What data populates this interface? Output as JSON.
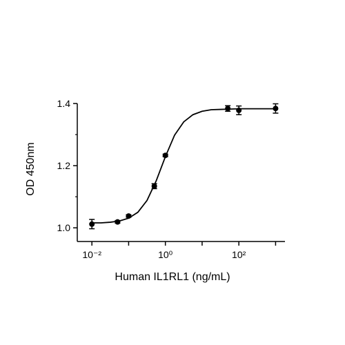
{
  "chart_data": {
    "type": "scatter",
    "x_label": "Human IL1RL1 (ng/mL)",
    "y_label": "OD 450nm",
    "xscale": "log",
    "xlim": [
      0.004,
      1800
    ],
    "ylim": [
      0.956,
      1.4
    ],
    "xticks": [
      {
        "value": 0.01,
        "label": "10⁻²"
      },
      {
        "value": 1,
        "label": "10⁰"
      },
      {
        "value": 100,
        "label": "10²"
      }
    ],
    "xminor_ticks": [
      0.1,
      10,
      1000
    ],
    "yticks": [
      {
        "value": 1,
        "label": "1.0"
      },
      1.2,
      1.4
    ],
    "yminor_ticks": [
      1.1,
      1.3
    ],
    "grid": false,
    "series": [
      {
        "color": "#000000",
        "x": [
          0.01,
          0.05,
          0.1,
          0.5,
          1,
          50,
          100,
          1000
        ],
        "values": [
          1.012,
          1.019,
          1.038,
          1.134,
          1.233,
          1.384,
          1.378,
          1.384
        ],
        "errors": [
          0.015,
          0.004,
          0.004,
          0.008,
          0.004,
          0.009,
          0.014,
          0.015
        ]
      }
    ],
    "fit_curve": {
      "color": "#000000",
      "x": [
        0.01,
        0.0178,
        0.0316,
        0.0562,
        0.1,
        0.178,
        0.316,
        0.562,
        1,
        1.778,
        3.162,
        5.623,
        10,
        17.78,
        31.62,
        56.23,
        100,
        316.2,
        1000
      ],
      "values": [
        1.016,
        1.016,
        1.018,
        1.022,
        1.031,
        1.05,
        1.088,
        1.151,
        1.229,
        1.298,
        1.341,
        1.364,
        1.375,
        1.38,
        1.381,
        1.382,
        1.383,
        1.383,
        1.383
      ]
    }
  }
}
